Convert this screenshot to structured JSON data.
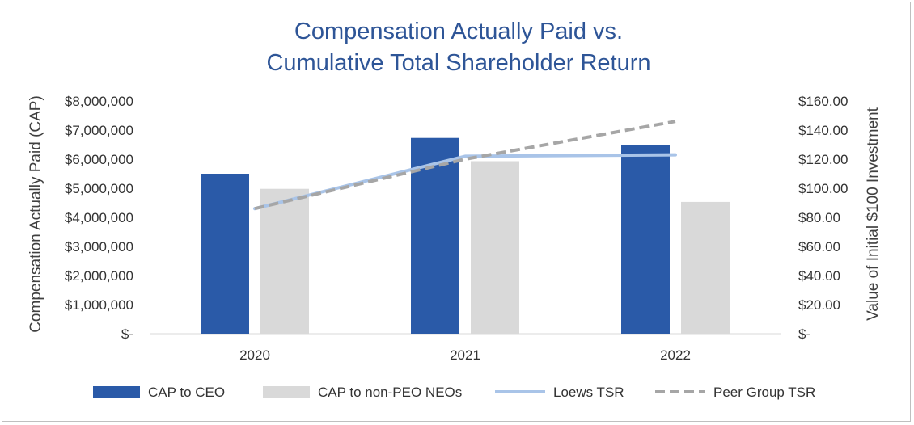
{
  "chart_data": {
    "type": "bar",
    "title_lines": [
      "Compensation Actually Paid vs.",
      "Cumulative Total Shareholder Return"
    ],
    "categories": [
      "2020",
      "2021",
      "2022"
    ],
    "ylabel": "Compensation Actually Paid (CAP)",
    "y2label": "Value of Initial $100 Investment",
    "ylim": [
      0,
      8000000
    ],
    "y2lim": [
      0,
      160
    ],
    "y_ticks": [
      "$-",
      "$1,000,000",
      "$2,000,000",
      "$3,000,000",
      "$4,000,000",
      "$5,000,000",
      "$6,000,000",
      "$7,000,000",
      "$8,000,000"
    ],
    "y2_ticks": [
      "$-",
      "$20.00",
      "$40.00",
      "$60.00",
      "$80.00",
      "$100.00",
      "$120.00",
      "$140.00",
      "$160.00"
    ],
    "grid": false,
    "legend_position": "bottom",
    "series": [
      {
        "name": "CAP to CEO",
        "type": "bar",
        "axis": "left",
        "color": "#2a5aa8",
        "values": [
          5500000,
          6730000,
          6500000
        ]
      },
      {
        "name": "CAP to non-PEO NEOs",
        "type": "bar",
        "axis": "left",
        "color": "#d9d9d9",
        "values": [
          4980000,
          5930000,
          4530000
        ]
      },
      {
        "name": "Loews TSR",
        "type": "line",
        "axis": "right",
        "color": "#a9c4e8",
        "style": "solid",
        "values": [
          86,
          122,
          123
        ]
      },
      {
        "name": "Peer Group TSR",
        "type": "line",
        "axis": "right",
        "color": "#a6a6a6",
        "style": "dashed",
        "values": [
          86,
          120,
          146
        ]
      }
    ]
  }
}
